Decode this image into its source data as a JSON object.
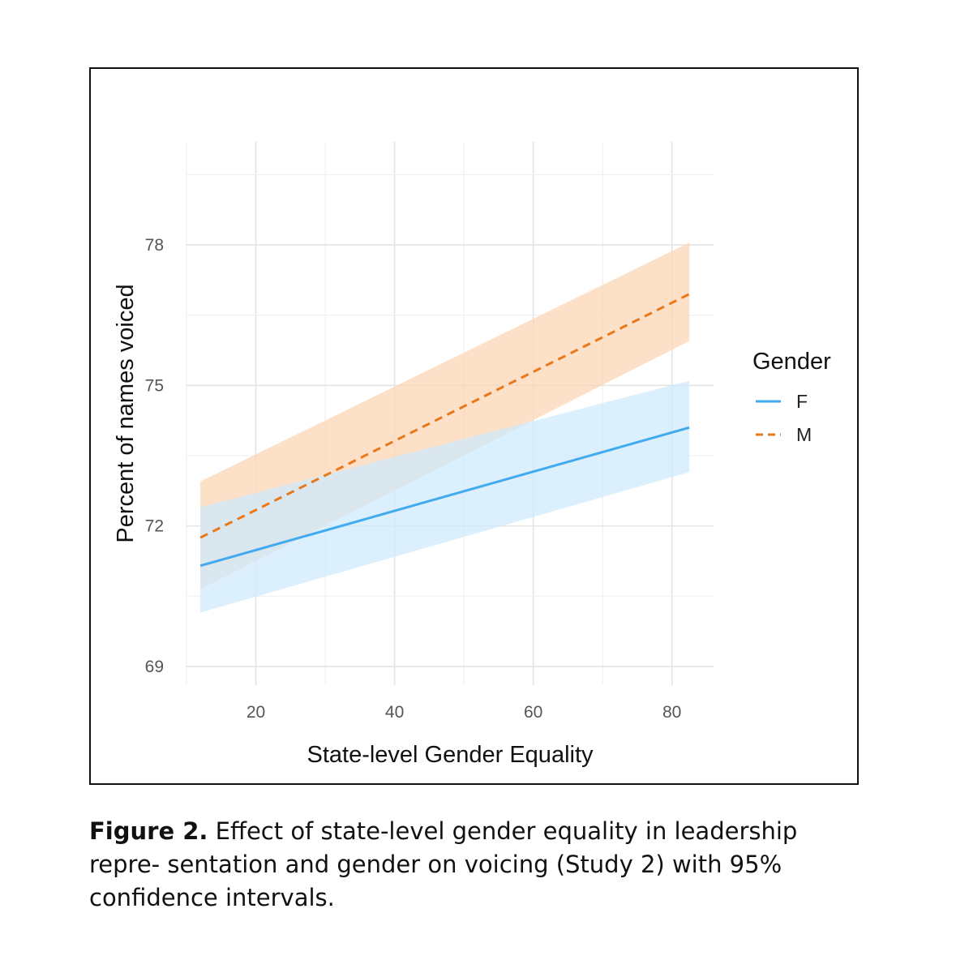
{
  "chart_data": {
    "type": "line",
    "xlabel": "State-level Gender Equality",
    "ylabel": "Percent of names voiced",
    "xlim": [
      10,
      86
    ],
    "ylim": [
      68.6,
      80.2
    ],
    "x_ticks": [
      20,
      40,
      60,
      80
    ],
    "y_ticks": [
      69,
      72,
      75,
      78
    ],
    "legend": {
      "title": "Gender",
      "position": "right"
    },
    "grid": true,
    "series": [
      {
        "name": "F",
        "style": "solid",
        "color": "#42aaee",
        "band_color": "#cfeafc",
        "x": [
          12,
          82.5
        ],
        "y": [
          71.15,
          74.1
        ],
        "ci_lower": [
          70.15,
          73.15
        ],
        "ci_upper": [
          72.4,
          75.1
        ]
      },
      {
        "name": "M",
        "style": "dashed",
        "color": "#e8781a",
        "band_color": "#fbd6b4",
        "x": [
          12,
          82.5
        ],
        "y": [
          71.75,
          76.95
        ],
        "ci_lower": [
          70.65,
          75.95
        ],
        "ci_upper": [
          72.95,
          78.05
        ]
      }
    ]
  },
  "caption": {
    "label": "Figure 2.",
    "text": " Effect of state-level gender equality in leadership repre- sentation and gender on voicing (Study 2) with 95% confidence intervals."
  }
}
